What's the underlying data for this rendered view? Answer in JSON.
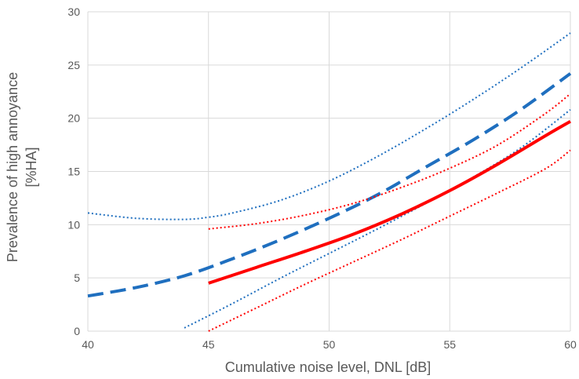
{
  "chart_data": {
    "type": "line",
    "title": "",
    "xlabel": "Cumulative noise level, DNL [dB]",
    "ylabel_lines": [
      "Prevalence of high annoyance",
      "[%HA]"
    ],
    "xlim": [
      40,
      60
    ],
    "ylim": [
      0,
      30
    ],
    "x_ticks": [
      40,
      45,
      50,
      55,
      60
    ],
    "y_ticks": [
      0,
      5,
      10,
      15,
      20,
      25,
      30
    ],
    "grid": true,
    "legend": "none",
    "series": [
      {
        "id": "blue-estimate",
        "color": "#1f6fbf",
        "style": "dashed",
        "points": [
          [
            40,
            3.3
          ],
          [
            42,
            4.1
          ],
          [
            44,
            5.2
          ],
          [
            46,
            6.8
          ],
          [
            48,
            8.6
          ],
          [
            50,
            10.6
          ],
          [
            52,
            12.8
          ],
          [
            54,
            15.4
          ],
          [
            56,
            18.0
          ],
          [
            58,
            20.9
          ],
          [
            60,
            24.2
          ]
        ]
      },
      {
        "id": "blue-upper-ci",
        "color": "#1f6fbf",
        "style": "dotted",
        "points": [
          [
            40,
            11.1
          ],
          [
            42,
            10.6
          ],
          [
            44,
            10.5
          ],
          [
            45,
            10.7
          ],
          [
            46,
            11.1
          ],
          [
            48,
            12.3
          ],
          [
            50,
            14.1
          ],
          [
            52,
            16.4
          ],
          [
            54,
            19.0
          ],
          [
            56,
            21.8
          ],
          [
            58,
            24.8
          ],
          [
            60,
            28.0
          ]
        ]
      },
      {
        "id": "blue-lower-ci",
        "color": "#1f6fbf",
        "style": "dotted",
        "points": [
          [
            44,
            0.3
          ],
          [
            46,
            2.6
          ],
          [
            48,
            5.0
          ],
          [
            50,
            7.3
          ],
          [
            52,
            9.6
          ],
          [
            54,
            12.0
          ],
          [
            56,
            14.5
          ],
          [
            58,
            17.3
          ],
          [
            60,
            20.8
          ]
        ]
      },
      {
        "id": "red-estimate",
        "color": "#ff0000",
        "style": "solid",
        "points": [
          [
            45,
            4.5
          ],
          [
            47,
            6.0
          ],
          [
            49,
            7.5
          ],
          [
            51,
            9.1
          ],
          [
            53,
            11.0
          ],
          [
            55,
            13.2
          ],
          [
            57,
            15.7
          ],
          [
            59,
            18.4
          ],
          [
            60,
            19.7
          ]
        ]
      },
      {
        "id": "red-upper-ci",
        "color": "#ff0000",
        "style": "dotted",
        "points": [
          [
            45,
            9.6
          ],
          [
            47,
            10.1
          ],
          [
            49,
            10.9
          ],
          [
            51,
            12.0
          ],
          [
            53,
            13.5
          ],
          [
            55,
            15.3
          ],
          [
            57,
            17.5
          ],
          [
            59,
            20.5
          ],
          [
            60,
            22.3
          ]
        ]
      },
      {
        "id": "red-lower-ci",
        "color": "#ff0000",
        "style": "dotted",
        "points": [
          [
            45,
            0.0
          ],
          [
            47,
            2.2
          ],
          [
            49,
            4.4
          ],
          [
            51,
            6.5
          ],
          [
            53,
            8.6
          ],
          [
            55,
            10.8
          ],
          [
            57,
            13.0
          ],
          [
            59,
            15.3
          ],
          [
            60,
            17.0
          ]
        ]
      }
    ]
  }
}
